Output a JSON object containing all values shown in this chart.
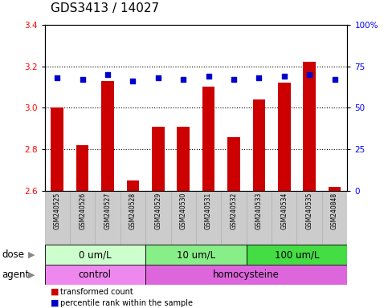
{
  "title": "GDS3413 / 14027",
  "samples": [
    "GSM240525",
    "GSM240526",
    "GSM240527",
    "GSM240528",
    "GSM240529",
    "GSM240530",
    "GSM240531",
    "GSM240532",
    "GSM240533",
    "GSM240534",
    "GSM240535",
    "GSM240848"
  ],
  "red_values": [
    3.0,
    2.82,
    3.13,
    2.65,
    2.91,
    2.91,
    3.1,
    2.86,
    3.04,
    3.12,
    3.22,
    2.62
  ],
  "blue_values": [
    68,
    67,
    70,
    66,
    68,
    67,
    69,
    67,
    68,
    69,
    70,
    67
  ],
  "ylim_left": [
    2.6,
    3.4
  ],
  "ylim_right": [
    0,
    100
  ],
  "yticks_left": [
    2.6,
    2.8,
    3.0,
    3.2,
    3.4
  ],
  "yticks_right": [
    0,
    25,
    50,
    75,
    100
  ],
  "ytick_labels_right": [
    "0",
    "25",
    "50",
    "75",
    "100%"
  ],
  "hlines": [
    2.8,
    3.0,
    3.2
  ],
  "dose_groups": [
    {
      "label": "0 um/L",
      "start": 0,
      "end": 4,
      "color": "#ccffcc"
    },
    {
      "label": "10 um/L",
      "start": 4,
      "end": 8,
      "color": "#88ee88"
    },
    {
      "label": "100 um/L",
      "start": 8,
      "end": 12,
      "color": "#44dd44"
    }
  ],
  "agent_groups": [
    {
      "label": "control",
      "start": 0,
      "end": 4,
      "color": "#ee88ee"
    },
    {
      "label": "homocysteine",
      "start": 4,
      "end": 12,
      "color": "#dd66dd"
    }
  ],
  "bar_color": "#cc0000",
  "dot_color": "#0000cc",
  "bar_width": 0.5,
  "baseline": 2.6,
  "legend_items": [
    {
      "color": "#cc0000",
      "label": "transformed count"
    },
    {
      "color": "#0000cc",
      "label": "percentile rank within the sample"
    }
  ],
  "title_fontsize": 11,
  "tick_fontsize": 7.5,
  "label_fontsize": 8.5,
  "sample_fontsize": 5.5
}
